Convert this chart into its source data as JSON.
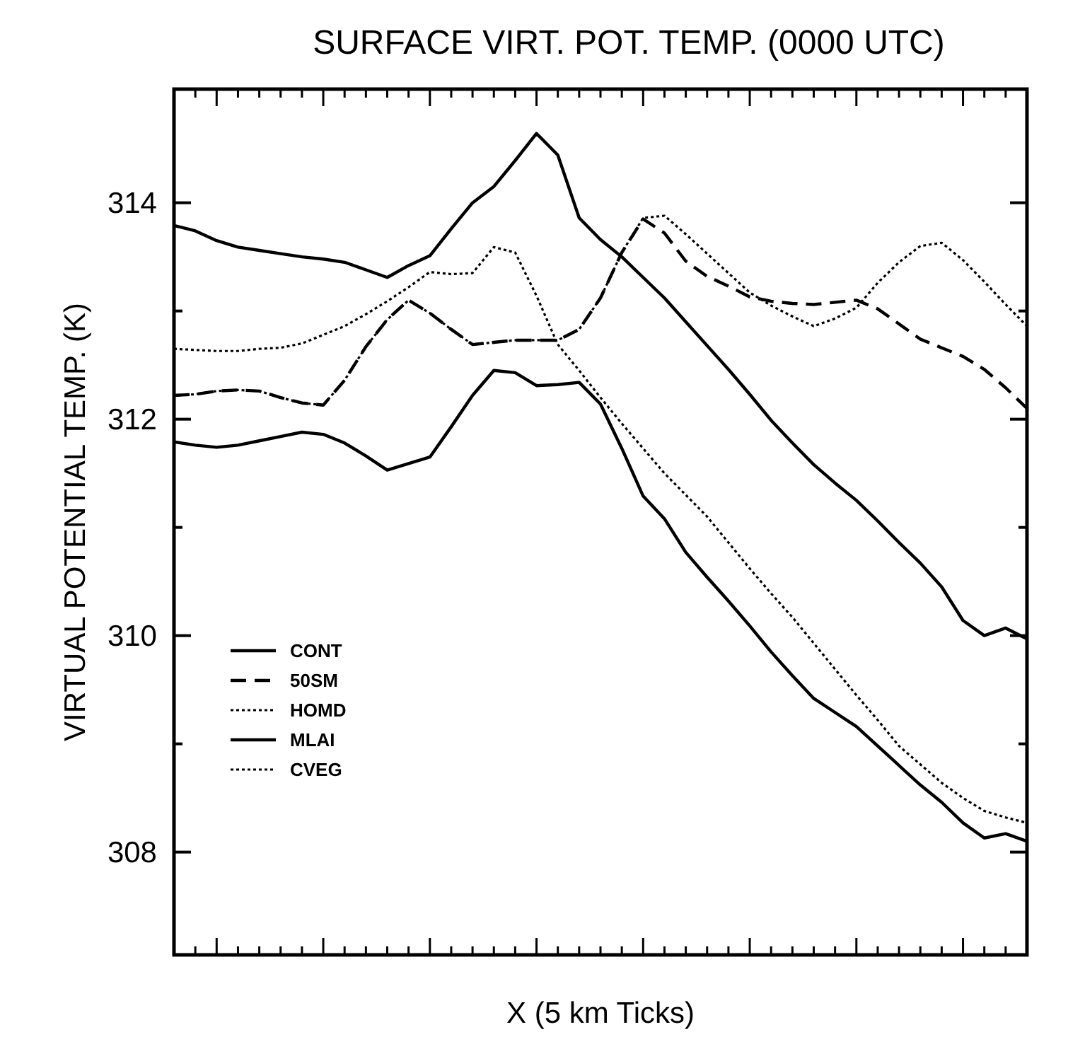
{
  "chart_data": {
    "type": "line",
    "title": "SURFACE VIRT. POT. TEMP. (0000 UTC)",
    "xlabel": "X (5 km Ticks)",
    "ylabel": "VIRTUAL POTENTIAL TEMP. (K)",
    "categories": [
      null,
      null,
      null,
      null,
      null,
      null,
      null,
      null,
      null,
      null,
      null,
      null,
      null,
      null,
      null,
      null,
      null,
      null,
      null,
      null,
      null,
      null,
      null,
      null,
      null,
      null,
      null,
      null,
      null,
      null,
      null,
      null,
      null,
      null,
      null,
      null,
      null,
      null,
      null,
      null,
      null
    ],
    "ylim": [
      307.05,
      315.05
    ],
    "yticks": [
      308,
      {
        "value": 309,
        "label": null
      },
      310,
      {
        "value": 311,
        "label": null
      },
      312,
      {
        "value": 313,
        "label": null
      },
      314
    ],
    "tick_labels": "y",
    "legend": "bottom left",
    "marker": "none",
    "series": [
      {
        "name": "CONT",
        "color": "#000000",
        "line_style": "solid",
        "values": [
          313.79,
          313.74,
          313.65,
          313.59,
          313.56,
          313.53,
          313.5,
          313.48,
          313.45,
          313.38,
          313.31,
          313.42,
          313.51,
          313.76,
          314.0,
          314.15,
          314.39,
          314.64,
          314.44,
          313.86,
          313.66,
          313.5,
          313.31,
          313.12,
          312.9,
          312.68,
          312.46,
          312.23,
          311.99,
          311.78,
          311.58,
          311.41,
          311.25,
          311.06,
          310.86,
          310.67,
          310.45,
          310.14,
          310.0,
          310.07,
          309.97
        ]
      },
      {
        "name": "50SM",
        "color": "#000000",
        "line_style": "dashed",
        "values": [
          312.22,
          312.23,
          312.26,
          312.27,
          312.26,
          312.2,
          312.15,
          312.13,
          312.36,
          312.67,
          312.92,
          313.1,
          312.98,
          312.83,
          312.69,
          312.71,
          312.73,
          312.73,
          312.73,
          312.83,
          313.12,
          313.54,
          313.85,
          313.72,
          313.46,
          313.32,
          313.23,
          313.13,
          313.09,
          313.07,
          313.06,
          313.08,
          313.1,
          313.02,
          312.88,
          312.74,
          312.66,
          312.58,
          312.46,
          312.29,
          312.1
        ]
      },
      {
        "name": "HOMD",
        "color": "#000000",
        "line_style": "dotted",
        "values": [
          312.22,
          312.23,
          312.26,
          312.27,
          312.26,
          312.2,
          312.15,
          312.13,
          312.36,
          312.67,
          312.92,
          313.1,
          312.98,
          312.83,
          312.69,
          312.71,
          312.73,
          312.73,
          312.73,
          312.83,
          313.12,
          313.54,
          313.86,
          313.88,
          313.71,
          313.53,
          313.35,
          313.17,
          313.05,
          312.95,
          312.86,
          312.93,
          313.03,
          313.26,
          313.45,
          313.6,
          313.63,
          313.47,
          313.27,
          313.06,
          312.86
        ]
      },
      {
        "name": "MLAI",
        "color": "#000000",
        "line_style": "solid",
        "values": [
          311.79,
          311.76,
          311.74,
          311.76,
          311.8,
          311.84,
          311.88,
          311.86,
          311.78,
          311.66,
          311.53,
          311.59,
          311.65,
          311.93,
          312.22,
          312.45,
          312.43,
          312.31,
          312.32,
          312.34,
          312.14,
          311.73,
          311.29,
          311.08,
          310.77,
          310.54,
          310.32,
          310.09,
          309.85,
          309.63,
          309.42,
          309.29,
          309.16,
          308.98,
          308.8,
          308.62,
          308.46,
          308.27,
          308.13,
          308.17,
          308.1
        ]
      },
      {
        "name": "CVEG",
        "color": "#000000",
        "line_style": "dotted",
        "values": [
          312.65,
          312.64,
          312.63,
          312.63,
          312.65,
          312.66,
          312.7,
          312.78,
          312.86,
          312.97,
          313.09,
          313.22,
          313.36,
          313.34,
          313.35,
          313.59,
          313.54,
          313.14,
          312.69,
          312.45,
          312.2,
          311.96,
          311.73,
          311.5,
          311.3,
          311.1,
          310.86,
          310.62,
          310.39,
          310.17,
          309.93,
          309.69,
          309.45,
          309.22,
          308.98,
          308.81,
          308.64,
          308.5,
          308.38,
          308.32,
          308.27
        ]
      }
    ]
  }
}
